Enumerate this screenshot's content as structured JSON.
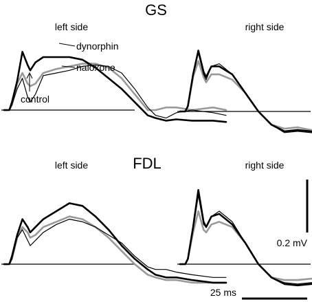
{
  "chart_data": {
    "type": "line",
    "x_unit": "ms",
    "y_unit": "mV",
    "series_styles": {
      "control": {
        "color": "#000000",
        "width": 1.2
      },
      "naloxone": {
        "color": "#999999",
        "width": 2.6
      },
      "dynorphin": {
        "color": "#000000",
        "width": 2.6
      }
    },
    "scale_bars": {
      "time": {
        "value": 25,
        "label": "25 ms"
      },
      "voltage": {
        "value": 0.2,
        "label": "0.2 mV"
      }
    },
    "muscles": [
      {
        "name": "GS",
        "panels": [
          {
            "label": "left side",
            "annotations": [
              "dynorphin",
              "naloxone",
              "control"
            ],
            "series": [
              {
                "name": "control",
                "t": [
                  0,
                  2,
                  3,
                  5,
                  7,
                  9,
                  10,
                  12,
                  15,
                  20,
                  25,
                  30,
                  35,
                  40,
                  45,
                  50,
                  55,
                  58,
                  62,
                  66,
                  72,
                  80,
                  85
                ],
                "v": [
                  0,
                  0,
                  0.02,
                  0.08,
                  0.12,
                  0.05,
                  0.03,
                  0.06,
                  0.13,
                  0.14,
                  0.15,
                  0.165,
                  0.17,
                  0.165,
                  0.14,
                  0.08,
                  0.01,
                  -0.02,
                  -0.03,
                  -0.01,
                  0.0,
                  -0.01,
                  -0.02
                ]
              },
              {
                "name": "naloxone",
                "t": [
                  0,
                  2,
                  3,
                  5,
                  7,
                  9,
                  10,
                  12,
                  15,
                  20,
                  25,
                  30,
                  35,
                  40,
                  45,
                  50,
                  55,
                  58,
                  62,
                  66,
                  72,
                  80,
                  85
                ],
                "v": [
                  0,
                  0,
                  0.02,
                  0.1,
                  0.14,
                  0.1,
                  0.09,
                  0.1,
                  0.14,
                  0.155,
                  0.165,
                  0.175,
                  0.175,
                  0.16,
                  0.12,
                  0.06,
                  0.0,
                  0.0,
                  0.01,
                  0.01,
                  0.0,
                  0.01,
                  0.0
                ]
              },
              {
                "name": "dynorphin",
                "t": [
                  0,
                  2,
                  3,
                  5,
                  7,
                  9,
                  10,
                  12,
                  15,
                  20,
                  25,
                  30,
                  35,
                  40,
                  45,
                  50,
                  55,
                  58,
                  62,
                  66,
                  72,
                  80,
                  85
                ],
                "v": [
                  0,
                  0,
                  0.03,
                  0.11,
                  0.22,
                  0.17,
                  0.15,
                  0.18,
                  0.2,
                  0.2,
                  0.2,
                  0.19,
                  0.16,
                  0.12,
                  0.08,
                  0.03,
                  -0.02,
                  -0.03,
                  -0.04,
                  -0.035,
                  -0.04,
                  -0.04,
                  -0.045
                ]
              }
            ]
          },
          {
            "label": "right side",
            "series": [
              {
                "name": "control",
                "t": [
                  0,
                  2,
                  3,
                  5,
                  7,
                  9,
                  10,
                  12,
                  15,
                  20,
                  25,
                  30,
                  35,
                  40,
                  45,
                  50,
                  55,
                  58,
                  62,
                  66,
                  72,
                  80,
                  85
                ],
                "v": [
                  0,
                  0,
                  0.02,
                  0.14,
                  0.22,
                  0.14,
                  0.12,
                  0.17,
                  0.18,
                  0.14,
                  0.07,
                  0.0,
                  -0.05,
                  -0.08,
                  -0.075,
                  -0.08,
                  -0.085,
                  -0.09,
                  -0.09,
                  -0.09,
                  -0.095,
                  -0.095,
                  -0.1
                ]
              },
              {
                "name": "naloxone",
                "t": [
                  0,
                  2,
                  3,
                  5,
                  7,
                  9,
                  10,
                  12,
                  15,
                  20,
                  25,
                  30,
                  35,
                  40,
                  45,
                  50,
                  55,
                  58,
                  62,
                  66,
                  72,
                  80,
                  85
                ],
                "v": [
                  0,
                  0,
                  0.02,
                  0.13,
                  0.19,
                  0.13,
                  0.11,
                  0.14,
                  0.14,
                  0.12,
                  0.07,
                  0.0,
                  -0.05,
                  -0.065,
                  -0.06,
                  -0.07,
                  -0.075,
                  -0.085,
                  -0.085,
                  -0.09,
                  -0.09,
                  -0.095,
                  -0.095
                ]
              },
              {
                "name": "dynorphin",
                "t": [
                  0,
                  2,
                  3,
                  5,
                  7,
                  9,
                  10,
                  12,
                  15,
                  20,
                  25,
                  30,
                  35,
                  40,
                  45,
                  50,
                  55,
                  58,
                  62,
                  66,
                  72,
                  80,
                  85
                ],
                "v": [
                  0,
                  0,
                  0.02,
                  0.14,
                  0.23,
                  0.15,
                  0.13,
                  0.17,
                  0.17,
                  0.14,
                  0.07,
                  0.0,
                  -0.05,
                  -0.075,
                  -0.07,
                  -0.075,
                  -0.085,
                  -0.09,
                  -0.09,
                  -0.095,
                  -0.1,
                  -0.1,
                  -0.105
                ]
              }
            ]
          }
        ]
      },
      {
        "name": "FDL",
        "panels": [
          {
            "label": "left side",
            "series": [
              {
                "name": "control",
                "t": [
                  0,
                  2,
                  3,
                  5,
                  7,
                  9,
                  10,
                  12,
                  15,
                  20,
                  25,
                  30,
                  35,
                  40,
                  45,
                  50,
                  55,
                  58,
                  62,
                  66,
                  72,
                  80,
                  85
                ],
                "v": [
                  0,
                  0,
                  0.02,
                  0.1,
                  0.13,
                  0.09,
                  0.07,
                  0.09,
                  0.12,
                  0.15,
                  0.17,
                  0.16,
                  0.14,
                  0.11,
                  0.08,
                  0.03,
                  -0.01,
                  -0.02,
                  -0.02,
                  -0.03,
                  -0.04,
                  -0.05,
                  -0.05
                ]
              },
              {
                "name": "naloxone",
                "t": [
                  0,
                  2,
                  3,
                  5,
                  7,
                  9,
                  10,
                  12,
                  15,
                  20,
                  25,
                  30,
                  35,
                  40,
                  45,
                  50,
                  55,
                  58,
                  62,
                  66,
                  72,
                  80,
                  85
                ],
                "v": [
                  0,
                  0,
                  0.02,
                  0.1,
                  0.14,
                  0.12,
                  0.1,
                  0.11,
                  0.14,
                  0.16,
                  0.18,
                  0.17,
                  0.14,
                  0.1,
                  0.05,
                  0.0,
                  -0.04,
                  -0.05,
                  -0.06,
                  -0.06,
                  -0.07,
                  -0.07,
                  -0.07
                ]
              },
              {
                "name": "dynorphin",
                "t": [
                  0,
                  2,
                  3,
                  5,
                  7,
                  9,
                  10,
                  12,
                  15,
                  20,
                  25,
                  30,
                  35,
                  40,
                  45,
                  50,
                  55,
                  58,
                  62,
                  66,
                  72,
                  80,
                  85
                ],
                "v": [
                  0,
                  0,
                  0.03,
                  0.11,
                  0.17,
                  0.14,
                  0.12,
                  0.14,
                  0.17,
                  0.2,
                  0.23,
                  0.22,
                  0.18,
                  0.13,
                  0.07,
                  0.02,
                  -0.02,
                  -0.04,
                  -0.05,
                  -0.05,
                  -0.06,
                  -0.07,
                  -0.07
                ]
              }
            ]
          },
          {
            "label": "right side",
            "series": [
              {
                "name": "control",
                "t": [
                  0,
                  2,
                  3,
                  5,
                  7,
                  9,
                  10,
                  12,
                  15,
                  20,
                  25,
                  30,
                  35,
                  40,
                  45,
                  50,
                  55,
                  58,
                  62,
                  66,
                  72,
                  80,
                  85
                ],
                "v": [
                  0,
                  0,
                  0.02,
                  0.13,
                  0.26,
                  0.15,
                  0.14,
                  0.18,
                  0.2,
                  0.16,
                  0.08,
                  0.0,
                  -0.05,
                  -0.07,
                  -0.075,
                  -0.07,
                  -0.065,
                  -0.075,
                  -0.08,
                  -0.085,
                  -0.09,
                  -0.095,
                  -0.1
                ]
              },
              {
                "name": "naloxone",
                "t": [
                  0,
                  2,
                  3,
                  5,
                  7,
                  9,
                  10,
                  12,
                  15,
                  20,
                  25,
                  30,
                  35,
                  40,
                  45,
                  50,
                  55,
                  58,
                  62,
                  66,
                  72,
                  80,
                  85
                ],
                "v": [
                  0,
                  0,
                  0.02,
                  0.12,
                  0.2,
                  0.13,
                  0.12,
                  0.15,
                  0.16,
                  0.14,
                  0.08,
                  0.0,
                  -0.05,
                  -0.06,
                  -0.06,
                  -0.055,
                  -0.055,
                  -0.065,
                  -0.07,
                  -0.08,
                  -0.085,
                  -0.09,
                  -0.095
                ]
              },
              {
                "name": "dynorphin",
                "t": [
                  0,
                  2,
                  3,
                  5,
                  7,
                  9,
                  10,
                  12,
                  15,
                  20,
                  25,
                  30,
                  35,
                  40,
                  45,
                  50,
                  55,
                  58,
                  62,
                  66,
                  72,
                  80,
                  85
                ],
                "v": [
                  0,
                  0,
                  0.02,
                  0.14,
                  0.28,
                  0.16,
                  0.14,
                  0.18,
                  0.19,
                  0.15,
                  0.08,
                  0.0,
                  -0.05,
                  -0.075,
                  -0.08,
                  -0.075,
                  -0.07,
                  -0.08,
                  -0.085,
                  -0.09,
                  -0.095,
                  -0.1,
                  -0.105
                ]
              }
            ]
          }
        ]
      }
    ]
  }
}
